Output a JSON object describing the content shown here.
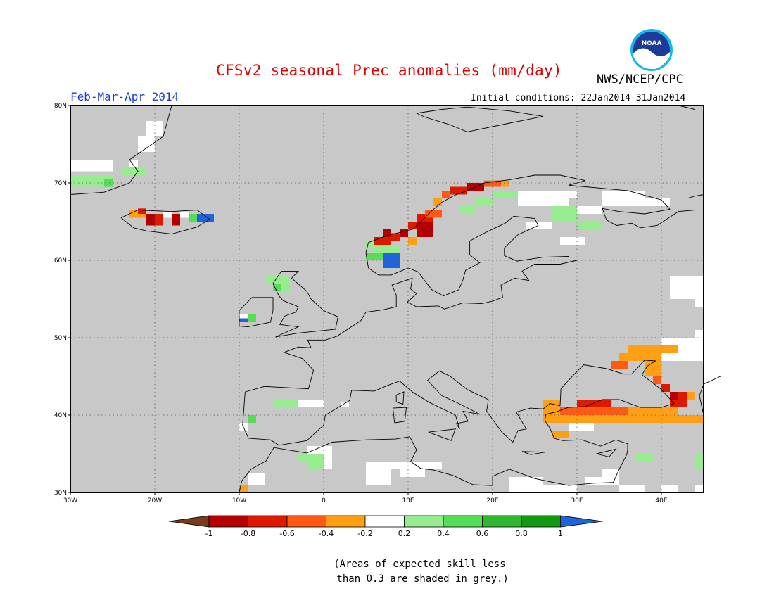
{
  "header": {
    "title": "CFSv2 seasonal Prec anomalies (mm/day)",
    "period": "Feb-Mar-Apr 2014",
    "initial_conditions": "Initial conditions: 22Jan2014-31Jan2014",
    "agency": "NWS/NCEP/CPC",
    "logo_text": "NOAA"
  },
  "map": {
    "region": "Europe",
    "lon_range": [
      -30,
      45
    ],
    "lat_range": [
      30,
      80
    ],
    "lon_ticks": [
      "30W",
      "20W",
      "10W",
      "0",
      "10E",
      "20E",
      "30E",
      "40E"
    ],
    "lat_ticks": [
      "80N",
      "70N",
      "60N",
      "50N",
      "40N",
      "30N"
    ],
    "background_color": "#c8c8c8"
  },
  "colorbar": {
    "tick_labels": [
      "-1",
      "-0.8",
      "-0.6",
      "-0.4",
      "-0.2",
      "0.2",
      "0.4",
      "0.6",
      "0.8",
      "1"
    ],
    "colors": [
      "#7a3a1c",
      "#b40000",
      "#dd1a00",
      "#ff5a14",
      "#ffa014",
      "#ffffff",
      "#98ec90",
      "#55de55",
      "#2eb82e",
      "#109a10",
      "#1e64dc"
    ]
  },
  "note": "(Areas of expected skill less\n than 0.3 are shaded in grey.)"
}
